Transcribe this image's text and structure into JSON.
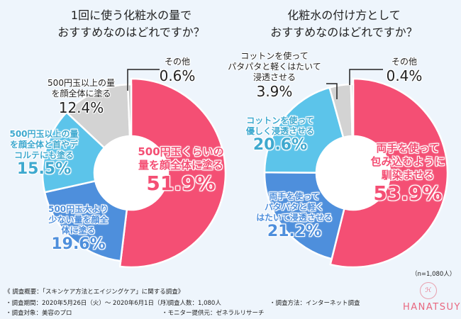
{
  "chart_data": [
    {
      "type": "pie",
      "title": "1回に使う化粧水の量で\nおすすめなのはどれですか？",
      "slices": [
        {
          "label": "500円玉くらいの量を顔全体に塗る",
          "value": 51.9,
          "display": "51.9%",
          "color": "#f44f74"
        },
        {
          "label": "500円玉大より少ない量を顔全体に塗る",
          "value": 19.6,
          "display": "19.6%",
          "color": "#4e8fdc"
        },
        {
          "label": "500円玉以上の量を顔全体と首やデコルテにも塗る",
          "value": 15.5,
          "display": "15.5%",
          "color": "#5cc4ea"
        },
        {
          "label": "500円玉以上の量を顔全体に塗る",
          "value": 12.4,
          "display": "12.4%",
          "color": "#d3d3d3"
        },
        {
          "label": "その他",
          "value": 0.6,
          "display": "0.6%",
          "color": "#bdbdbd"
        }
      ]
    },
    {
      "type": "pie",
      "title": "化粧水の付け方として\nおすすめなのはどれですか？",
      "slices": [
        {
          "label": "両手を使って包み込むように馴染ませる",
          "value": 53.9,
          "display": "53.9%",
          "color": "#f44f74"
        },
        {
          "label": "両手を使ってパタパタと軽くはたいて浸透させる",
          "value": 21.2,
          "display": "21.2%",
          "color": "#4e8fdc"
        },
        {
          "label": "コットンを使って優しく浸透させる",
          "value": 20.6,
          "display": "20.6%",
          "color": "#5cc4ea"
        },
        {
          "label": "コットンを使ってパタパタと軽くはたいて浸透させる",
          "value": 3.9,
          "display": "3.9%",
          "color": "#d3d3d3"
        },
        {
          "label": "その他",
          "value": 0.4,
          "display": "0.4%",
          "color": "#bdbdbd"
        }
      ]
    }
  ],
  "labels": {
    "left": [
      [
        "500円玉くらいの",
        "量を顔全体に塗る"
      ],
      [
        "500円玉大より",
        "少ない量を",
        "顔全体に塗る"
      ],
      [
        "500円玉以上の",
        "量を顔全体と首や",
        "デコルテにも塗る"
      ],
      [
        "500円玉以上の",
        "量を顔全体に塗る"
      ],
      [
        "その他"
      ]
    ],
    "right": [
      [
        "両手を使って",
        "包み込むように",
        "馴染ませる"
      ],
      [
        "両手を使って",
        "パタパタと軽く",
        "はたいて浸透させる"
      ],
      [
        "コットンを使って",
        "優しく浸透させる"
      ],
      [
        "コットンを使って",
        "パタパタと軽くはたいて",
        "浸透させる"
      ],
      [
        "その他"
      ]
    ]
  },
  "sample_note": "（n=1,080人）",
  "footer": {
    "heading": "《 調査概要：「スキンケア方法とエイジングケア」に関する調査》",
    "items": [
      "・調査期間：2020年5月26日（火）～ 2020年6月1日（月）",
      "・調査人数：1,080人",
      "・調査方法：インターネット調査",
      "・調査対象：美容のプロ",
      "・モニター提供元：ゼネラルリサーチ"
    ]
  },
  "brand": "HANATSUYU"
}
